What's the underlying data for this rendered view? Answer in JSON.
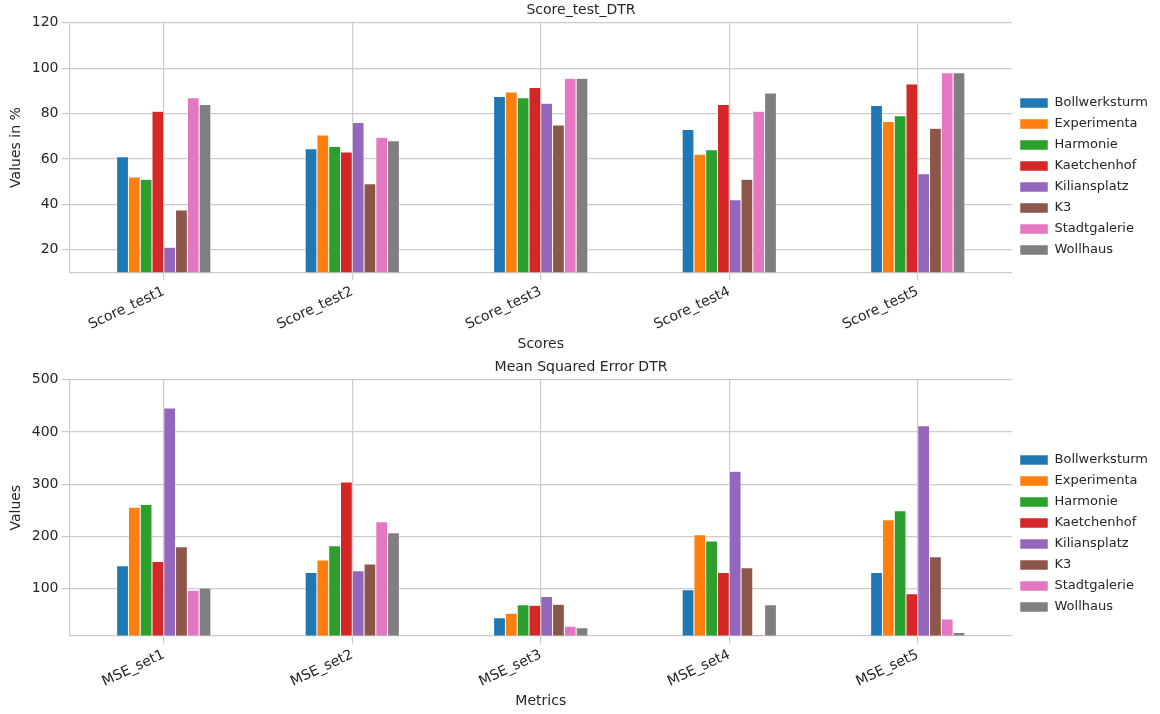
{
  "chart_data": [
    {
      "type": "bar",
      "title": "Score_test_DTR",
      "xlabel": "Scores",
      "ylabel": "Values in %",
      "categories": [
        "Score_test1",
        "Score_test2",
        "Score_test3",
        "Score_test4",
        "Score_test5"
      ],
      "series": [
        {
          "name": "Bollwerksturm",
          "color": "#1f77b4",
          "values": [
            61,
            64.5,
            87.5,
            73,
            83.5
          ]
        },
        {
          "name": "Experimenta",
          "color": "#ff7f0e",
          "values": [
            52,
            70.5,
            89.5,
            62,
            76.5
          ]
        },
        {
          "name": "Harmonie",
          "color": "#2ca02c",
          "values": [
            51,
            65.5,
            87,
            64,
            79
          ]
        },
        {
          "name": "Kaetchenhof",
          "color": "#d62728",
          "values": [
            81,
            63,
            91.5,
            84,
            93
          ]
        },
        {
          "name": "Kiliansplatz",
          "color": "#9467bd",
          "values": [
            21,
            76,
            84.5,
            42,
            53.5
          ]
        },
        {
          "name": "K3",
          "color": "#8c564b",
          "values": [
            37.5,
            49,
            75,
            51,
            73.5
          ]
        },
        {
          "name": "Stadtgalerie",
          "color": "#e377c2",
          "values": [
            87,
            69.5,
            95.5,
            81,
            98
          ]
        },
        {
          "name": "Wollhaus",
          "color": "#7f7f7f",
          "values": [
            84,
            68,
            95.5,
            89,
            98
          ]
        }
      ],
      "ylim": [
        10,
        120
      ],
      "yticks": [
        20,
        40,
        60,
        80,
        100,
        120
      ],
      "grid": true,
      "legend": "right"
    },
    {
      "type": "bar",
      "title": "Mean Squared Error DTR",
      "xlabel": "Metrics",
      "ylabel": "Values",
      "categories": [
        "MSE_set1",
        "MSE_set2",
        "MSE_set3",
        "MSE_set4",
        "MSE_set5"
      ],
      "series": [
        {
          "name": "Bollwerksturm",
          "color": "#1f77b4",
          "values": [
            144,
            131,
            44,
            98,
            131
          ]
        },
        {
          "name": "Experimenta",
          "color": "#ff7f0e",
          "values": [
            256,
            155,
            53,
            203,
            232
          ]
        },
        {
          "name": "Harmonie",
          "color": "#2ca02c",
          "values": [
            261,
            182,
            69,
            191,
            249
          ]
        },
        {
          "name": "Kaetchenhof",
          "color": "#d62728",
          "values": [
            152,
            304,
            68,
            131,
            90
          ]
        },
        {
          "name": "Kiliansplatz",
          "color": "#9467bd",
          "values": [
            446,
            134,
            85,
            325,
            412
          ]
        },
        {
          "name": "K3",
          "color": "#8c564b",
          "values": [
            180,
            147,
            70,
            140,
            161
          ]
        },
        {
          "name": "Stadtgalerie",
          "color": "#e377c2",
          "values": [
            97,
            228,
            28,
            12,
            42
          ]
        },
        {
          "name": "Wollhaus",
          "color": "#7f7f7f",
          "values": [
            101,
            207,
            25,
            69,
            16
          ]
        }
      ],
      "ylim": [
        10,
        500
      ],
      "yticks": [
        100,
        200,
        300,
        400,
        500
      ],
      "grid": true,
      "legend": "right"
    }
  ]
}
